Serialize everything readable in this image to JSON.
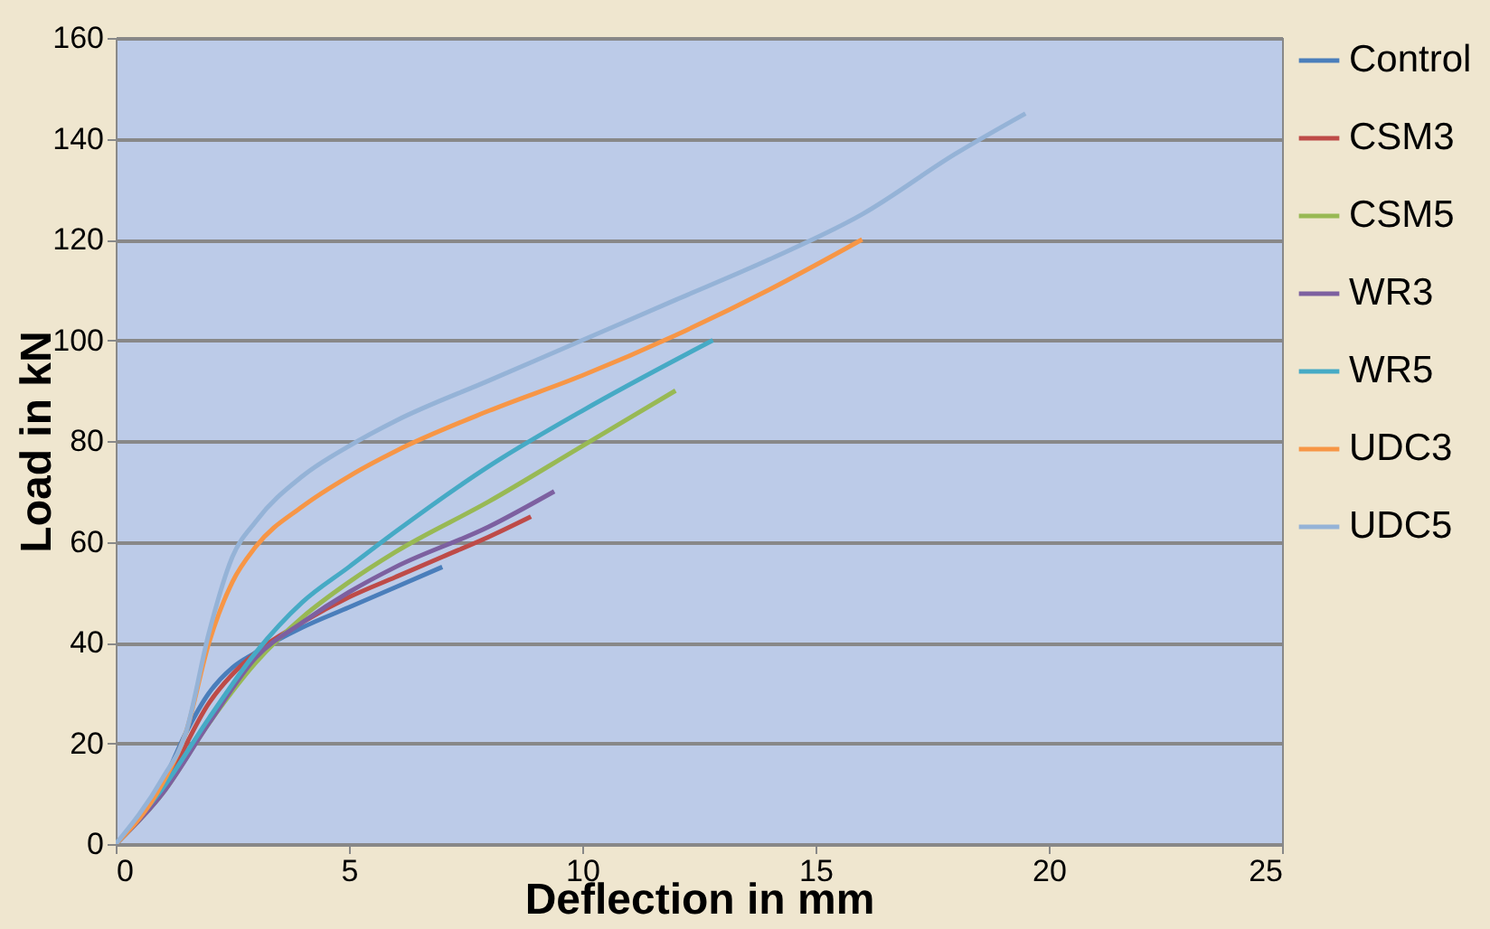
{
  "chart_data": {
    "type": "line",
    "xlabel": "Deflection in mm",
    "ylabel": "Load in kN",
    "xlim": [
      0,
      25
    ],
    "xticks": [
      0,
      5,
      10,
      15,
      20,
      25
    ],
    "ylim": [
      0,
      160
    ],
    "yticks": [
      0,
      20,
      40,
      60,
      80,
      100,
      120,
      140,
      160
    ],
    "grid": "y",
    "legend": "right",
    "marker": "none",
    "line_style": "solid",
    "series": [
      {
        "name": "Control",
        "color": "#4a7ebb",
        "x": [
          0,
          1,
          1.5,
          2,
          2.5,
          3,
          4,
          5,
          6,
          7
        ],
        "values": [
          0,
          12,
          22,
          30,
          35,
          38,
          43,
          47,
          51,
          55
        ]
      },
      {
        "name": "CSM3",
        "color": "#be4b48",
        "x": [
          0,
          1,
          2,
          3,
          4,
          5,
          6,
          7,
          8,
          8.9
        ],
        "values": [
          0,
          11,
          28,
          38,
          44,
          49,
          53,
          57,
          61,
          65
        ]
      },
      {
        "name": "CSM5",
        "color": "#98b954",
        "x": [
          0,
          1,
          2,
          3,
          4,
          5,
          6,
          8,
          10,
          12
        ],
        "values": [
          0,
          10,
          24,
          36,
          45,
          52,
          58,
          68,
          79,
          90
        ]
      },
      {
        "name": "WR3",
        "color": "#7d60a0",
        "x": [
          0,
          1,
          2,
          3,
          4,
          5,
          6,
          8,
          9.4
        ],
        "values": [
          0,
          10,
          24,
          37,
          44,
          50,
          55,
          63,
          70
        ]
      },
      {
        "name": "WR5",
        "color": "#46aac5",
        "x": [
          0,
          1,
          2,
          3,
          4,
          5,
          6,
          8,
          10,
          12.8
        ],
        "values": [
          0,
          11,
          25,
          38,
          48,
          55,
          62,
          75,
          86,
          100
        ]
      },
      {
        "name": "UDC3",
        "color": "#f79646",
        "x": [
          0,
          1,
          1.5,
          2,
          2.5,
          3,
          4,
          5,
          6,
          8,
          10,
          12,
          14,
          16
        ],
        "values": [
          0,
          12,
          22,
          40,
          52,
          59,
          67,
          73,
          78,
          86,
          93,
          101,
          110,
          120
        ]
      },
      {
        "name": "UDC5",
        "color": "#95b3d7",
        "x": [
          0,
          1,
          1.5,
          2,
          2.5,
          3,
          4,
          5,
          6,
          8,
          10,
          12,
          14,
          16,
          18,
          19.5
        ],
        "values": [
          0,
          13,
          22,
          42,
          57,
          64,
          73,
          79,
          84,
          92,
          100,
          108,
          116,
          125,
          137,
          145
        ]
      }
    ]
  }
}
